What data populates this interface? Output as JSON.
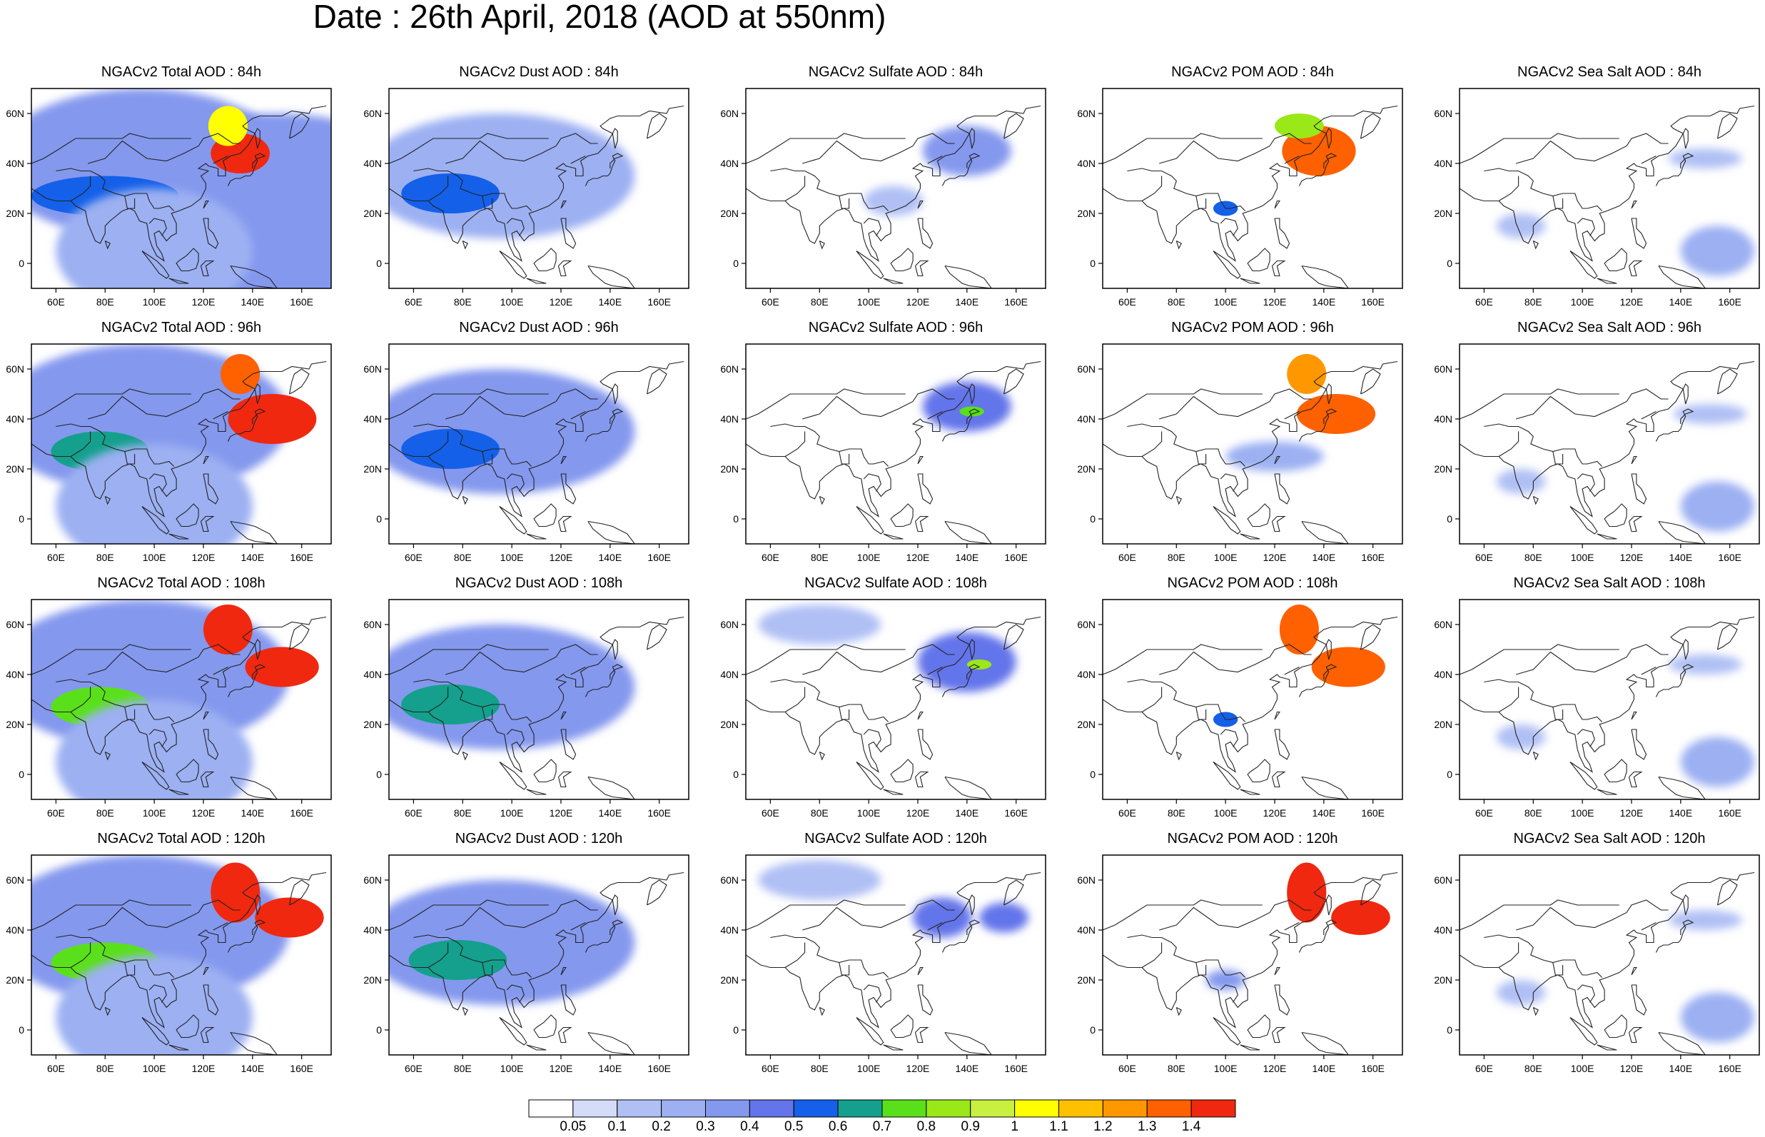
{
  "title": "Date : 26th April, 2018 (AOD at 550nm)",
  "columns": [
    "Total",
    "Dust",
    "Sulfate",
    "POM",
    "Sea Salt"
  ],
  "panels": [
    [
      "NGACv2 Total AOD : 84h",
      "NGACv2 Dust AOD : 84h",
      "NGACv2 Sulfate AOD : 84h",
      "NGACv2 POM AOD : 84h",
      "NGACv2 Sea Salt AOD : 84h"
    ],
    [
      "NGACv2 Total AOD : 96h",
      "NGACv2 Dust AOD : 96h",
      "NGACv2 Sulfate AOD : 96h",
      "NGACv2 POM AOD : 96h",
      "NGACv2 Sea Salt AOD : 96h"
    ],
    [
      "NGACv2 Total AOD : 108h",
      "NGACv2 Dust AOD : 108h",
      "NGACv2 Sulfate AOD : 108h",
      "NGACv2 POM AOD : 108h",
      "NGACv2 Sea Salt AOD : 108h"
    ],
    [
      "NGACv2 Total AOD : 120h",
      "NGACv2 Dust AOD : 120h",
      "NGACv2 Sulfate AOD : 120h",
      "NGACv2 POM AOD : 120h",
      "NGACv2 Sea Salt  AOD : 120h"
    ]
  ],
  "lat_ticks": [
    "60N",
    "40N",
    "20N",
    "0"
  ],
  "lon_ticks": [
    "60E",
    "80E",
    "100E",
    "120E",
    "140E",
    "160E"
  ],
  "colorbar": {
    "labels": [
      "0.05",
      "0.1",
      "0.2",
      "0.3",
      "0.4",
      "0.5",
      "0.6",
      "0.7",
      "0.8",
      "0.9",
      "1",
      "1.1",
      "1.2",
      "1.3",
      "1.4"
    ],
    "colors": [
      "#ffffff",
      "#d4dcf8",
      "#b0c0f4",
      "#9cb0f2",
      "#8498ee",
      "#6474ea",
      "#1460e8",
      "#14a08c",
      "#5ae01a",
      "#9ae818",
      "#c8f040",
      "#ffff00",
      "#ffc000",
      "#ff9800",
      "#ff6000",
      "#f02810"
    ]
  },
  "plumes": {
    "Total": [
      [
        [
          95,
          40,
          60,
          30,
          0.35
        ],
        [
          150,
          20,
          70,
          40,
          0.3
        ],
        [
          135,
          44,
          12,
          8,
          1.4
        ],
        [
          130,
          55,
          8,
          8,
          1.0
        ],
        [
          80,
          27,
          30,
          8,
          0.5
        ],
        [
          100,
          5,
          40,
          25,
          0.2
        ]
      ],
      [
        [
          95,
          40,
          60,
          30,
          0.35
        ],
        [
          148,
          40,
          18,
          10,
          1.4
        ],
        [
          135,
          58,
          8,
          8,
          1.3
        ],
        [
          78,
          27,
          20,
          8,
          0.6
        ],
        [
          100,
          5,
          40,
          25,
          0.2
        ]
      ],
      [
        [
          95,
          40,
          60,
          30,
          0.35
        ],
        [
          152,
          43,
          15,
          8,
          1.4
        ],
        [
          130,
          58,
          10,
          10,
          1.4
        ],
        [
          78,
          27,
          20,
          8,
          0.7
        ],
        [
          100,
          5,
          40,
          25,
          0.2
        ]
      ],
      [
        [
          95,
          40,
          60,
          30,
          0.35
        ],
        [
          155,
          45,
          14,
          8,
          1.4
        ],
        [
          133,
          55,
          10,
          12,
          1.4
        ],
        [
          80,
          27,
          22,
          8,
          0.7
        ],
        [
          100,
          5,
          40,
          25,
          0.2
        ]
      ]
    ],
    "Dust": [
      [
        [
          95,
          35,
          55,
          25,
          0.25
        ],
        [
          75,
          28,
          20,
          8,
          0.5
        ]
      ],
      [
        [
          95,
          35,
          55,
          25,
          0.3
        ],
        [
          75,
          28,
          20,
          8,
          0.5
        ]
      ],
      [
        [
          95,
          35,
          55,
          25,
          0.3
        ],
        [
          75,
          28,
          20,
          8,
          0.6
        ]
      ],
      [
        [
          95,
          35,
          55,
          25,
          0.3
        ],
        [
          78,
          28,
          20,
          8,
          0.6
        ]
      ]
    ],
    "Sulfate": [
      [
        [
          140,
          45,
          18,
          10,
          0.3
        ],
        [
          110,
          25,
          12,
          6,
          0.15
        ]
      ],
      [
        [
          140,
          45,
          18,
          10,
          0.4
        ],
        [
          142,
          43,
          5,
          2,
          0.7
        ]
      ],
      [
        [
          140,
          45,
          20,
          12,
          0.4
        ],
        [
          145,
          44,
          5,
          2,
          0.8
        ],
        [
          80,
          60,
          25,
          8,
          0.15
        ]
      ],
      [
        [
          130,
          45,
          12,
          8,
          0.4
        ],
        [
          155,
          45,
          10,
          6,
          0.45
        ],
        [
          80,
          60,
          25,
          8,
          0.15
        ]
      ]
    ],
    "POM": [
      [
        [
          138,
          45,
          15,
          10,
          1.3
        ],
        [
          130,
          55,
          10,
          5,
          0.8
        ],
        [
          100,
          22,
          5,
          3,
          0.5
        ]
      ],
      [
        [
          145,
          42,
          16,
          8,
          1.3
        ],
        [
          133,
          58,
          8,
          8,
          1.2
        ],
        [
          120,
          25,
          20,
          6,
          0.2
        ]
      ],
      [
        [
          150,
          43,
          15,
          8,
          1.3
        ],
        [
          130,
          58,
          8,
          10,
          1.3
        ],
        [
          100,
          22,
          5,
          3,
          0.5
        ]
      ],
      [
        [
          155,
          45,
          12,
          7,
          1.4
        ],
        [
          133,
          55,
          8,
          12,
          1.4
        ],
        [
          100,
          20,
          8,
          4,
          0.3
        ]
      ]
    ],
    "Sea Salt": [
      [
        [
          155,
          5,
          15,
          10,
          0.2
        ],
        [
          150,
          42,
          15,
          4,
          0.12
        ],
        [
          75,
          15,
          10,
          5,
          0.1
        ]
      ],
      [
        [
          155,
          5,
          15,
          10,
          0.2
        ],
        [
          152,
          42,
          15,
          4,
          0.12
        ],
        [
          75,
          15,
          10,
          5,
          0.1
        ]
      ],
      [
        [
          155,
          5,
          15,
          10,
          0.2
        ],
        [
          150,
          44,
          15,
          4,
          0.12
        ],
        [
          75,
          15,
          10,
          5,
          0.1
        ]
      ],
      [
        [
          155,
          5,
          15,
          10,
          0.2
        ],
        [
          150,
          44,
          15,
          4,
          0.12
        ],
        [
          75,
          15,
          10,
          5,
          0.1
        ]
      ]
    ]
  }
}
